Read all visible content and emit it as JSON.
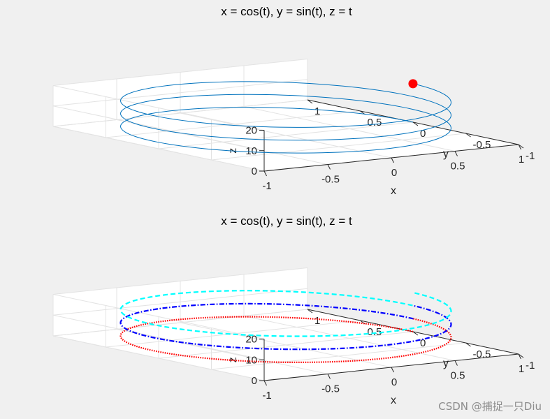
{
  "watermark": "CSDN @捕捉一只Diu",
  "chart_data": [
    {
      "type": "line3d",
      "title": "x = cos(t), y = sin(t), z = t",
      "xlabel": "x",
      "ylabel": "y",
      "zlabel": "z",
      "xlim": [
        -1,
        1
      ],
      "ylim": [
        -1,
        1
      ],
      "zlim": [
        0,
        20
      ],
      "x_ticks": [
        "-1",
        "-0.5",
        "0",
        "0.5",
        "1"
      ],
      "y_ticks": [
        "-1",
        "-0.5",
        "0",
        "0.5",
        "1"
      ],
      "z_ticks": [
        "0",
        "10",
        "20"
      ],
      "grid": true,
      "series": [
        {
          "expr_x": "cos(t)",
          "expr_y": "sin(t)",
          "expr_z": "t",
          "t_range": [
            0,
            18.85
          ],
          "color": "#0072bd",
          "style": "solid"
        }
      ],
      "marker": {
        "t": 18.85,
        "color": "#ff0000"
      }
    },
    {
      "type": "line3d",
      "title": "x = cos(t), y = sin(t), z = t",
      "xlabel": "x",
      "ylabel": "y",
      "zlabel": "z",
      "xlim": [
        -1,
        1
      ],
      "ylim": [
        -1,
        1
      ],
      "zlim": [
        0,
        20
      ],
      "x_ticks": [
        "-1",
        "-0.5",
        "0",
        "0.5",
        "1"
      ],
      "y_ticks": [
        "-1",
        "-0.5",
        "0",
        "0.5",
        "1"
      ],
      "z_ticks": [
        "0",
        "10",
        "20"
      ],
      "grid": true,
      "series": [
        {
          "expr_x": "cos(t)",
          "expr_y": "sin(t)",
          "expr_z": "t",
          "t_range": [
            0,
            6.28
          ],
          "color": "#ff0000",
          "style": "dotted"
        },
        {
          "expr_x": "cos(t)",
          "expr_y": "sin(t)",
          "expr_z": "t",
          "t_range": [
            6.28,
            12.57
          ],
          "color": "#0000ff",
          "style": "dashdot"
        },
        {
          "expr_x": "cos(t)",
          "expr_y": "sin(t)",
          "expr_z": "t",
          "t_range": [
            12.57,
            18.85
          ],
          "color": "#00ffff",
          "style": "dashed"
        }
      ]
    }
  ]
}
